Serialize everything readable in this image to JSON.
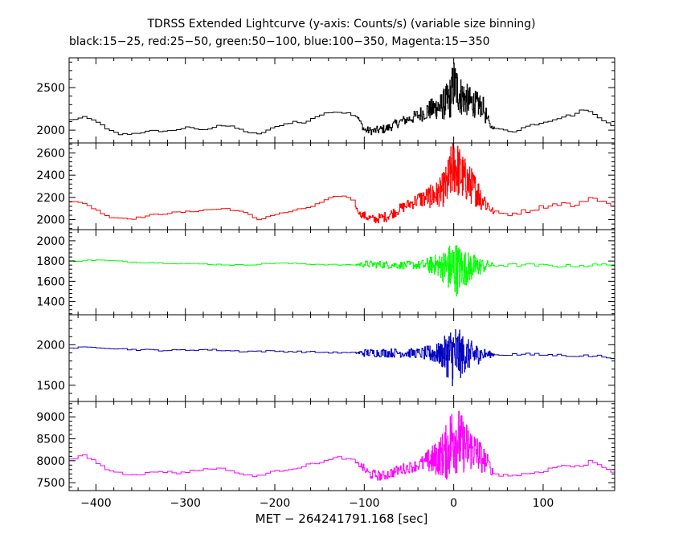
{
  "chart_data": {
    "type": "line",
    "title": "TDRSS Extended Lightcurve (y-axis: Counts/s) (variable size binning)",
    "subtitle": "black:15−25, red:25−50, green:50−100, blue:100−350, Magenta:15−350",
    "xlabel": "MET − 264241791.168 [sec]",
    "xlim": [
      -430,
      180
    ],
    "xticks": [
      -400,
      -300,
      -200,
      -100,
      0,
      100
    ],
    "xtick_labels": [
      "−400",
      "−300",
      "−200",
      "−100",
      "0",
      "100"
    ],
    "panels": [
      {
        "name": "15-25",
        "color": "#000000",
        "ylim": [
          1850,
          2850
        ],
        "yticks": [
          2000,
          2500
        ],
        "baseline": [
          [
            -430,
            2120
          ],
          [
            -415,
            2150
          ],
          [
            -400,
            2100
          ],
          [
            -390,
            2010
          ],
          [
            -375,
            1950
          ],
          [
            -360,
            1960
          ],
          [
            -340,
            1990
          ],
          [
            -320,
            1990
          ],
          [
            -300,
            2030
          ],
          [
            -280,
            2000
          ],
          [
            -265,
            2060
          ],
          [
            -250,
            2040
          ],
          [
            -230,
            1970
          ],
          [
            -220,
            1950
          ],
          [
            -210,
            2000
          ],
          [
            -195,
            2060
          ],
          [
            -180,
            2100
          ],
          [
            -170,
            2080
          ],
          [
            -160,
            2140
          ],
          [
            -150,
            2180
          ],
          [
            -135,
            2220
          ],
          [
            -120,
            2200
          ],
          [
            -108,
            2160
          ],
          [
            -100,
            2000
          ],
          [
            -90,
            1990
          ],
          [
            -75,
            2020
          ],
          [
            -60,
            2100
          ],
          [
            -45,
            2150
          ],
          [
            -30,
            2230
          ],
          [
            -15,
            2280
          ],
          [
            -5,
            2350
          ],
          [
            0,
            2550
          ],
          [
            8,
            2400
          ],
          [
            20,
            2320
          ],
          [
            32,
            2280
          ],
          [
            40,
            2050
          ],
          [
            50,
            2000
          ],
          [
            65,
            1990
          ],
          [
            85,
            2060
          ],
          [
            100,
            2100
          ],
          [
            120,
            2160
          ],
          [
            132,
            2180
          ],
          [
            145,
            2250
          ],
          [
            160,
            2150
          ],
          [
            170,
            2100
          ],
          [
            180,
            2030
          ]
        ],
        "noise": [
          [
            -430,
            10
          ],
          [
            -110,
            10
          ],
          [
            -100,
            45
          ],
          [
            -50,
            60
          ],
          [
            -15,
            150
          ],
          [
            0,
            300
          ],
          [
            12,
            200
          ],
          [
            35,
            120
          ],
          [
            42,
            18
          ],
          [
            180,
            12
          ]
        ]
      },
      {
        "name": "25-50",
        "color": "#ff0000",
        "ylim": [
          1910,
          2690
        ],
        "yticks": [
          2000,
          2200,
          2400,
          2600
        ],
        "baseline": [
          [
            -430,
            2160
          ],
          [
            -415,
            2150
          ],
          [
            -400,
            2080
          ],
          [
            -385,
            2020
          ],
          [
            -360,
            2010
          ],
          [
            -340,
            2040
          ],
          [
            -320,
            2060
          ],
          [
            -300,
            2070
          ],
          [
            -275,
            2090
          ],
          [
            -255,
            2100
          ],
          [
            -235,
            2060
          ],
          [
            -220,
            2000
          ],
          [
            -205,
            2040
          ],
          [
            -180,
            2080
          ],
          [
            -160,
            2120
          ],
          [
            -140,
            2190
          ],
          [
            -128,
            2220
          ],
          [
            -115,
            2180
          ],
          [
            -105,
            2050
          ],
          [
            -90,
            2000
          ],
          [
            -75,
            2030
          ],
          [
            -55,
            2120
          ],
          [
            -40,
            2180
          ],
          [
            -20,
            2220
          ],
          [
            -8,
            2300
          ],
          [
            0,
            2500
          ],
          [
            10,
            2380
          ],
          [
            25,
            2260
          ],
          [
            35,
            2160
          ],
          [
            45,
            2060
          ],
          [
            60,
            2050
          ],
          [
            80,
            2080
          ],
          [
            100,
            2120
          ],
          [
            120,
            2150
          ],
          [
            135,
            2120
          ],
          [
            150,
            2200
          ],
          [
            160,
            2180
          ],
          [
            170,
            2150
          ],
          [
            180,
            2080
          ]
        ],
        "noise": [
          [
            -430,
            8
          ],
          [
            -110,
            8
          ],
          [
            -100,
            40
          ],
          [
            -50,
            50
          ],
          [
            -15,
            130
          ],
          [
            0,
            280
          ],
          [
            12,
            200
          ],
          [
            35,
            100
          ],
          [
            45,
            20
          ],
          [
            180,
            15
          ]
        ]
      },
      {
        "name": "50-100",
        "color": "#00ff00",
        "ylim": [
          1270,
          2110
        ],
        "yticks": [
          1400,
          1600,
          1800,
          2000
        ],
        "baseline": [
          [
            -430,
            1800
          ],
          [
            -400,
            1810
          ],
          [
            -360,
            1790
          ],
          [
            -320,
            1780
          ],
          [
            -280,
            1770
          ],
          [
            -240,
            1760
          ],
          [
            -200,
            1780
          ],
          [
            -160,
            1770
          ],
          [
            -120,
            1760
          ],
          [
            -100,
            1770
          ],
          [
            -60,
            1760
          ],
          [
            -20,
            1760
          ],
          [
            0,
            1720
          ],
          [
            20,
            1740
          ],
          [
            40,
            1760
          ],
          [
            80,
            1760
          ],
          [
            120,
            1750
          ],
          [
            160,
            1760
          ],
          [
            180,
            1770
          ]
        ],
        "noise": [
          [
            -430,
            6
          ],
          [
            -110,
            6
          ],
          [
            -100,
            35
          ],
          [
            -40,
            40
          ],
          [
            -15,
            120
          ],
          [
            0,
            300
          ],
          [
            12,
            180
          ],
          [
            35,
            60
          ],
          [
            45,
            15
          ],
          [
            180,
            15
          ]
        ]
      },
      {
        "name": "100-350",
        "color": "#0000c0",
        "ylim": [
          1300,
          2370
        ],
        "yticks": [
          1500,
          2000
        ],
        "baseline": [
          [
            -430,
            1960
          ],
          [
            -400,
            1970
          ],
          [
            -360,
            1940
          ],
          [
            -320,
            1930
          ],
          [
            -280,
            1940
          ],
          [
            -240,
            1920
          ],
          [
            -200,
            1920
          ],
          [
            -160,
            1910
          ],
          [
            -120,
            1900
          ],
          [
            -100,
            1900
          ],
          [
            -60,
            1900
          ],
          [
            -20,
            1890
          ],
          [
            0,
            1870
          ],
          [
            20,
            1880
          ],
          [
            40,
            1880
          ],
          [
            80,
            1880
          ],
          [
            120,
            1870
          ],
          [
            160,
            1860
          ],
          [
            180,
            1840
          ]
        ],
        "noise": [
          [
            -430,
            10
          ],
          [
            -110,
            10
          ],
          [
            -100,
            50
          ],
          [
            -40,
            60
          ],
          [
            -15,
            140
          ],
          [
            0,
            420
          ],
          [
            12,
            220
          ],
          [
            35,
            70
          ],
          [
            45,
            18
          ],
          [
            180,
            15
          ]
        ]
      },
      {
        "name": "15-350",
        "color": "#ff00ff",
        "ylim": [
          7320,
          9350
        ],
        "yticks": [
          7500,
          8000,
          8500,
          9000
        ],
        "baseline": [
          [
            -430,
            8020
          ],
          [
            -415,
            8120
          ],
          [
            -400,
            7950
          ],
          [
            -390,
            7800
          ],
          [
            -370,
            7700
          ],
          [
            -350,
            7700
          ],
          [
            -330,
            7760
          ],
          [
            -310,
            7720
          ],
          [
            -290,
            7780
          ],
          [
            -270,
            7830
          ],
          [
            -255,
            7800
          ],
          [
            -240,
            7700
          ],
          [
            -225,
            7640
          ],
          [
            -210,
            7720
          ],
          [
            -190,
            7800
          ],
          [
            -175,
            7850
          ],
          [
            -160,
            7930
          ],
          [
            -140,
            8020
          ],
          [
            -130,
            8080
          ],
          [
            -115,
            8010
          ],
          [
            -105,
            7900
          ],
          [
            -95,
            7700
          ],
          [
            -80,
            7650
          ],
          [
            -60,
            7800
          ],
          [
            -40,
            7900
          ],
          [
            -20,
            8050
          ],
          [
            -8,
            8200
          ],
          [
            0,
            8600
          ],
          [
            10,
            8350
          ],
          [
            22,
            8250
          ],
          [
            35,
            8000
          ],
          [
            45,
            7700
          ],
          [
            60,
            7660
          ],
          [
            80,
            7700
          ],
          [
            100,
            7780
          ],
          [
            120,
            7900
          ],
          [
            140,
            7850
          ],
          [
            150,
            8000
          ],
          [
            162,
            7920
          ],
          [
            172,
            7800
          ],
          [
            180,
            7720
          ]
        ],
        "noise": [
          [
            -430,
            25
          ],
          [
            -110,
            25
          ],
          [
            -100,
            110
          ],
          [
            -40,
            130
          ],
          [
            -15,
            450
          ],
          [
            0,
            900
          ],
          [
            12,
            600
          ],
          [
            35,
            300
          ],
          [
            45,
            40
          ],
          [
            180,
            40
          ]
        ]
      }
    ]
  }
}
